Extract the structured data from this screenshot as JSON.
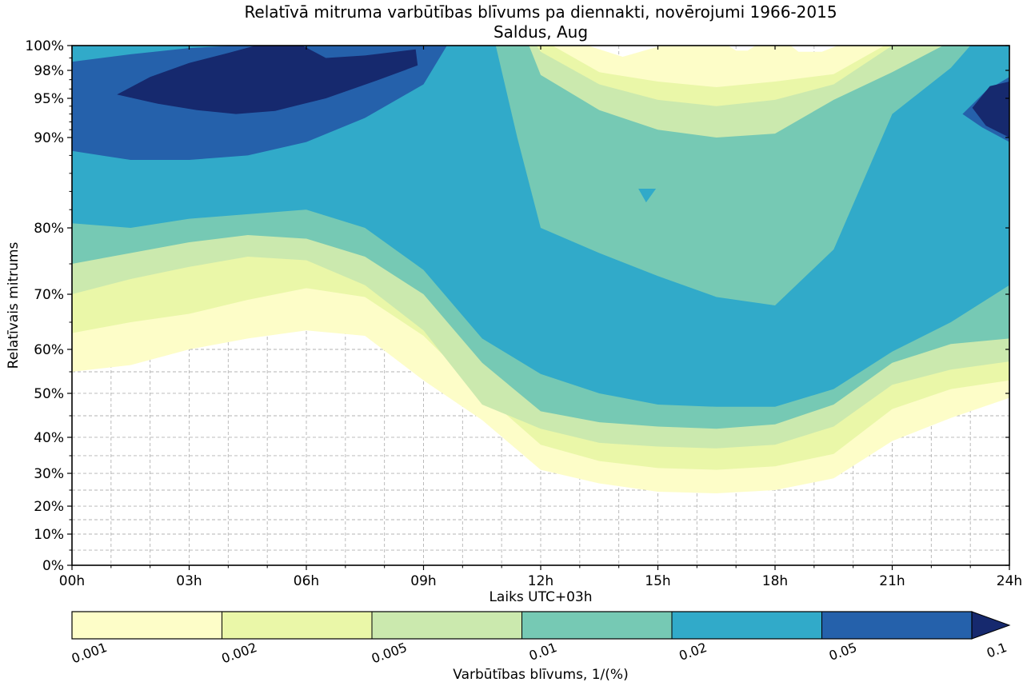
{
  "title": {
    "line1": "Relatīvā mitruma varbūtības blīvums pa diennakti, novērojumi 1966-2015",
    "line2": "Saldus, Aug"
  },
  "axes": {
    "x_label": "Laiks UTC+03h",
    "y_label": "Relatīvais mitrums",
    "x_ticks": [
      {
        "hour": 0,
        "label": "00h"
      },
      {
        "hour": 3,
        "label": "03h"
      },
      {
        "hour": 6,
        "label": "06h"
      },
      {
        "hour": 9,
        "label": "09h"
      },
      {
        "hour": 12,
        "label": "12h"
      },
      {
        "hour": 15,
        "label": "15h"
      },
      {
        "hour": 18,
        "label": "18h"
      },
      {
        "hour": 21,
        "label": "21h"
      },
      {
        "hour": 24,
        "label": "24h"
      }
    ],
    "y_ticks": [
      {
        "value": 100,
        "label": "100%"
      },
      {
        "value": 98,
        "label": "98%"
      },
      {
        "value": 95,
        "label": "95%"
      },
      {
        "value": 90,
        "label": "90%"
      },
      {
        "value": 80,
        "label": "80%"
      },
      {
        "value": 70,
        "label": "70%"
      },
      {
        "value": 60,
        "label": "60%"
      },
      {
        "value": 50,
        "label": "50%"
      },
      {
        "value": 40,
        "label": "40%"
      },
      {
        "value": 30,
        "label": "30%"
      },
      {
        "value": 20,
        "label": "20%"
      },
      {
        "value": 10,
        "label": "10%"
      },
      {
        "value": 0,
        "label": "0%"
      }
    ],
    "y_minor_gridlines": [
      99,
      98,
      97,
      96,
      95,
      94,
      93,
      92,
      91,
      90,
      88,
      86,
      84,
      82,
      80,
      75,
      70,
      65,
      60,
      55,
      50,
      45,
      40,
      35,
      30,
      25,
      20,
      15,
      10,
      5
    ],
    "y_scale_map": [
      [
        100,
        0
      ],
      [
        98,
        0.0477
      ],
      [
        95,
        0.1015
      ],
      [
        90,
        0.1769
      ],
      [
        85,
        0.2631
      ],
      [
        80,
        0.3508
      ],
      [
        75,
        0.42
      ],
      [
        70,
        0.4785
      ],
      [
        65,
        0.5323
      ],
      [
        60,
        0.5846
      ],
      [
        55,
        0.6277
      ],
      [
        50,
        0.6692
      ],
      [
        45,
        0.7123
      ],
      [
        40,
        0.7538
      ],
      [
        35,
        0.7892
      ],
      [
        30,
        0.8231
      ],
      [
        25,
        0.8554
      ],
      [
        20,
        0.8862
      ],
      [
        15,
        0.9123
      ],
      [
        10,
        0.94
      ],
      [
        5,
        0.9708
      ],
      [
        0,
        1
      ]
    ],
    "x_range_hours": [
      0,
      24
    ],
    "grid_color": "#b3b3b3"
  },
  "chart_data": {
    "type": "filled_contour",
    "title": "Relatīvā mitruma varbūtības blīvums pa diennakti, novērojumi 1966-2015",
    "subtitle": "Saldus, Aug",
    "xlabel": "Laiks UTC+03h",
    "ylabel": "Relatīvais mitrums",
    "x_unit": "hour of day, UTC+03",
    "y_unit": "% relative humidity",
    "ylim": [
      0,
      100
    ],
    "xlim": [
      0,
      24
    ],
    "grid": true,
    "levels": [
      0.001,
      0.002,
      0.005,
      0.01,
      0.02,
      0.05,
      0.1
    ],
    "level_colors": [
      "#fdfdc8",
      "#eaf7a8",
      "#cbe9ae",
      "#76c9b4",
      "#31aac9",
      "#2561ab",
      "#16296e"
    ],
    "bands": [
      {
        "level_gte": 0.001,
        "color": "#fdfdc8",
        "points": [
          [
            0,
            55
          ],
          [
            1.5,
            56.5
          ],
          [
            3,
            60
          ],
          [
            4.5,
            62
          ],
          [
            6,
            63.5
          ],
          [
            7.5,
            62.5
          ],
          [
            9,
            53
          ],
          [
            10.5,
            44
          ],
          [
            12,
            31
          ],
          [
            13.5,
            27
          ],
          [
            15,
            24.5
          ],
          [
            16.5,
            24
          ],
          [
            18,
            25
          ],
          [
            19.5,
            28.5
          ],
          [
            21,
            39
          ],
          [
            22.5,
            44.5
          ],
          [
            24,
            49
          ],
          [
            24,
            100
          ],
          [
            19.6,
            100
          ],
          [
            19.2,
            99.5
          ],
          [
            18.6,
            99.5
          ],
          [
            18.4,
            100
          ],
          [
            17.5,
            100
          ],
          [
            17.3,
            99.6
          ],
          [
            17.0,
            99.6
          ],
          [
            16.8,
            100
          ],
          [
            15.1,
            100
          ],
          [
            14.1,
            99.1
          ],
          [
            13.2,
            100
          ],
          [
            0,
            100
          ]
        ]
      },
      {
        "level_gte": 0.002,
        "color": "#eaf7a8",
        "points": [
          [
            0,
            63
          ],
          [
            1.5,
            65
          ],
          [
            3,
            66.5
          ],
          [
            4.5,
            69
          ],
          [
            6,
            71
          ],
          [
            7.5,
            69.5
          ],
          [
            9,
            62.5
          ],
          [
            10.5,
            50
          ],
          [
            12,
            38
          ],
          [
            13.5,
            33.5
          ],
          [
            15,
            31.5
          ],
          [
            16.5,
            31
          ],
          [
            18,
            32
          ],
          [
            19.5,
            35.5
          ],
          [
            21,
            46.5
          ],
          [
            22.5,
            51
          ],
          [
            24,
            53
          ],
          [
            24,
            100
          ],
          [
            20.8,
            100
          ],
          [
            19.5,
            97.6
          ],
          [
            18,
            96.8
          ],
          [
            16.5,
            96.2
          ],
          [
            15,
            96.8
          ],
          [
            13.5,
            97.8
          ],
          [
            12.3,
            100
          ],
          [
            0,
            100
          ]
        ]
      },
      {
        "level_gte": 0.005,
        "color": "#cbe9ae",
        "points": [
          [
            0,
            70
          ],
          [
            1.5,
            72.5
          ],
          [
            3,
            74.5
          ],
          [
            4.5,
            76
          ],
          [
            6,
            75.5
          ],
          [
            7.5,
            71.5
          ],
          [
            9,
            63.5
          ],
          [
            10.5,
            47.5
          ],
          [
            12,
            42
          ],
          [
            13.5,
            38.5
          ],
          [
            15,
            37.5
          ],
          [
            16.5,
            37
          ],
          [
            18,
            38
          ],
          [
            19.5,
            42.5
          ],
          [
            21,
            52
          ],
          [
            22.5,
            55.5
          ],
          [
            24,
            57.3
          ],
          [
            24,
            100
          ],
          [
            21,
            100
          ],
          [
            19.5,
            96.5
          ],
          [
            18,
            94.8
          ],
          [
            16.5,
            94
          ],
          [
            15,
            94.8
          ],
          [
            13.5,
            96.5
          ],
          [
            12,
            99.5
          ],
          [
            11.9,
            100
          ],
          [
            0,
            100
          ]
        ]
      },
      {
        "level_gte": 0.01,
        "color": "#76c9b4",
        "points": [
          [
            0,
            75
          ],
          [
            1.5,
            76.5
          ],
          [
            3,
            78
          ],
          [
            4.5,
            79
          ],
          [
            6,
            78.5
          ],
          [
            7.5,
            76
          ],
          [
            9,
            70
          ],
          [
            10.5,
            57
          ],
          [
            12,
            46
          ],
          [
            13.5,
            43.5
          ],
          [
            15,
            42.5
          ],
          [
            16.5,
            42
          ],
          [
            18,
            43
          ],
          [
            19.5,
            47.5
          ],
          [
            21,
            57
          ],
          [
            22.5,
            61
          ],
          [
            24,
            62
          ],
          [
            24,
            100
          ],
          [
            22.3,
            100
          ],
          [
            21,
            97.8
          ],
          [
            19.5,
            94.8
          ],
          [
            18,
            90.5
          ],
          [
            16.5,
            90
          ],
          [
            15,
            91
          ],
          [
            13.5,
            93.5
          ],
          [
            12,
            97.5
          ],
          [
            11.7,
            100
          ],
          [
            0,
            100
          ]
        ]
      },
      {
        "level_gte": 0.02,
        "color": "#31aac9",
        "points": [
          [
            0,
            80.5
          ],
          [
            1.5,
            80
          ],
          [
            3,
            81
          ],
          [
            4.5,
            81.5
          ],
          [
            6,
            82
          ],
          [
            7.5,
            80
          ],
          [
            9,
            74
          ],
          [
            10.5,
            62
          ],
          [
            12,
            54.5
          ],
          [
            13.5,
            50
          ],
          [
            15,
            47.5
          ],
          [
            16.5,
            47
          ],
          [
            18,
            47
          ],
          [
            19.5,
            51
          ],
          [
            21,
            59.5
          ],
          [
            22.5,
            65
          ],
          [
            24,
            71.5
          ],
          [
            24,
            100
          ],
          [
            23,
            100
          ],
          [
            22.5,
            98.2
          ],
          [
            21,
            93
          ],
          [
            19.5,
            77
          ],
          [
            18,
            68
          ],
          [
            16.5,
            69.5
          ],
          [
            15,
            73
          ],
          [
            13.5,
            76.5
          ],
          [
            12,
            80
          ],
          [
            11.4,
            90
          ],
          [
            10.85,
            100
          ],
          [
            0,
            100
          ]
        ]
      },
      {
        "level_gte": 0.02,
        "color": "#31aac9",
        "points": [
          [
            14.5,
            84.3
          ],
          [
            14.95,
            84.3
          ],
          [
            14.7,
            82.8
          ]
        ]
      },
      {
        "level_gte": 0.05,
        "color": "#2561ab",
        "points": [
          [
            0,
            88.5
          ],
          [
            1.5,
            87.5
          ],
          [
            3,
            87.5
          ],
          [
            4.5,
            88
          ],
          [
            6,
            89.5
          ],
          [
            7.5,
            92.5
          ],
          [
            9,
            96.5
          ],
          [
            9.6,
            100
          ],
          [
            4.2,
            100
          ],
          [
            3,
            99.8
          ],
          [
            1.5,
            99.3
          ],
          [
            0,
            98.7
          ]
        ]
      },
      {
        "level_gte": 0.05,
        "color": "#2561ab",
        "points": [
          [
            22.8,
            93
          ],
          [
            23.3,
            91.3
          ],
          [
            24,
            89.5
          ],
          [
            24,
            97.3
          ],
          [
            23.4,
            95.8
          ]
        ]
      },
      {
        "level_gte": 0.1,
        "color": "#16296e",
        "points": [
          [
            1.15,
            95.4
          ],
          [
            2.2,
            94.3
          ],
          [
            3.2,
            93.5
          ],
          [
            4.2,
            93
          ],
          [
            5.2,
            93.4
          ],
          [
            6.5,
            95
          ],
          [
            7.8,
            96.9
          ],
          [
            8.85,
            98.4
          ],
          [
            8.8,
            99.7
          ],
          [
            7.5,
            99.2
          ],
          [
            6.5,
            99
          ],
          [
            5.9,
            100
          ],
          [
            4.7,
            100
          ],
          [
            4,
            99.4
          ],
          [
            3,
            98.6
          ],
          [
            2,
            97.3
          ]
        ]
      },
      {
        "level_gte": 0.1,
        "color": "#16296e",
        "points": [
          [
            23.05,
            93.8
          ],
          [
            23.4,
            91.5
          ],
          [
            24,
            90
          ],
          [
            24,
            96.8
          ],
          [
            23.5,
            96.3
          ]
        ]
      }
    ]
  },
  "colorbar": {
    "labels": [
      "0.001",
      "0.002",
      "0.005",
      "0.01",
      "0.02",
      "0.05",
      "0.1"
    ],
    "segment_colors": [
      "#fdfdc8",
      "#eaf7a8",
      "#cbe9ae",
      "#76c9b4",
      "#31aac9",
      "#2561ab"
    ],
    "arrow_color": "#16296e",
    "title": "Varbūtības blīvums, 1/(%)"
  }
}
